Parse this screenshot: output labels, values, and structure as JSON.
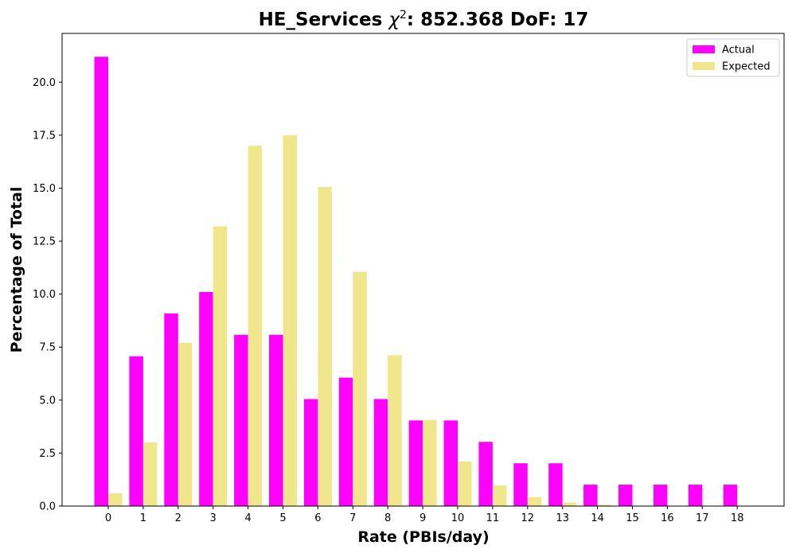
{
  "chart_data": {
    "type": "bar",
    "title_main": "HE_Services ",
    "title_chi": "χ",
    "title_sup": "2",
    "title_rest": ": 852.368 DoF: 17",
    "xlabel": "Rate (PBIs/day)",
    "ylabel": "Percentage of Total",
    "categories": [
      "0",
      "1",
      "2",
      "3",
      "4",
      "5",
      "6",
      "7",
      "8",
      "9",
      "10",
      "11",
      "12",
      "13",
      "14",
      "15",
      "16",
      "17",
      "18"
    ],
    "series": [
      {
        "name": "Actual",
        "color": "#ff00ff",
        "values": [
          21.2,
          7.07,
          9.09,
          10.1,
          8.08,
          8.08,
          5.05,
          6.06,
          5.05,
          4.04,
          4.04,
          3.03,
          2.02,
          2.02,
          1.01,
          1.01,
          1.01,
          1.01,
          1.01
        ]
      },
      {
        "name": "Expected",
        "color": "#f0e68c",
        "values": [
          0.6,
          3.0,
          7.7,
          13.2,
          17.0,
          17.5,
          15.05,
          11.05,
          7.12,
          4.07,
          2.1,
          0.98,
          0.42,
          0.17,
          0.06,
          0.02,
          0.0,
          0.0,
          0.0
        ]
      }
    ],
    "yticks": [
      "0.0",
      "2.5",
      "5.0",
      "7.5",
      "10.0",
      "12.5",
      "15.0",
      "17.5",
      "20.0"
    ],
    "ylim": [
      0,
      22.3
    ],
    "legend_position": "top-right"
  }
}
